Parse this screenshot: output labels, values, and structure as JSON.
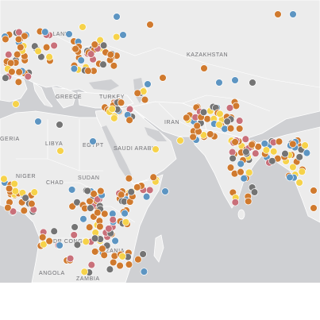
{
  "map": {
    "colors": {
      "water": "#cfd0d3",
      "land": "#ececec",
      "border": "#ffffff",
      "label": "#6f6f73",
      "dot_stroke": "#ffffff"
    },
    "marker_colors": {
      "orange": "#d07a2e",
      "blue": "#5d95c2",
      "yellow": "#f6d24a",
      "pink": "#c9707a",
      "gray": "#747474"
    },
    "labels": {
      "poland": "POLAND",
      "kazakhstan": "KAZAKHSTAN",
      "greece": "GREECE",
      "turkey": "TURKEY",
      "libya": "LIBYA",
      "egypt": "EGYPT",
      "saudi": "SAUDI ARABIA",
      "iran": "IRAN",
      "nigeria": "GERIA",
      "niger": "NIGER",
      "chad": "CHAD",
      "sudan": "SUDAN",
      "drcongo": "DR CONGO",
      "tanzania": "TANZANIA",
      "angola": "ANGOLA",
      "zambia": "ZAMBIA"
    }
  }
}
